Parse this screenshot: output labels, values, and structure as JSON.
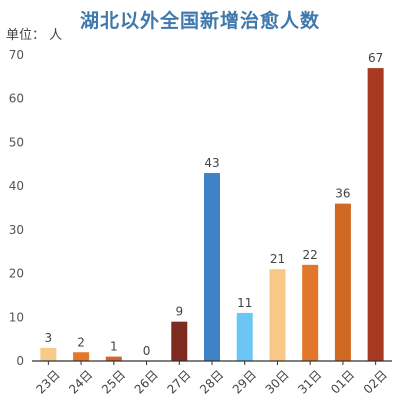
{
  "chart_data": {
    "type": "bar",
    "title": "湖北以外全国新增治愈人数",
    "unit_label": "单位：  人",
    "categories": [
      "23日",
      "24日",
      "25日",
      "26日",
      "27日",
      "28日",
      "29日",
      "30日",
      "31日",
      "01日",
      "02日"
    ],
    "values": [
      3,
      2,
      1,
      0,
      9,
      43,
      11,
      21,
      22,
      36,
      67
    ],
    "bar_colors": [
      "#f7c98a",
      "#e2762b",
      "#d5632a",
      "#d5632a",
      "#7e2a1f",
      "#3f82c6",
      "#6cc6f5",
      "#f9c889",
      "#e2762b",
      "#d06a22",
      "#a83a22"
    ],
    "ylim": [
      0,
      70
    ],
    "y_ticks": [
      0,
      10,
      20,
      30,
      40,
      50,
      60,
      70
    ],
    "grid": false,
    "title_color": "#3f78ad"
  }
}
